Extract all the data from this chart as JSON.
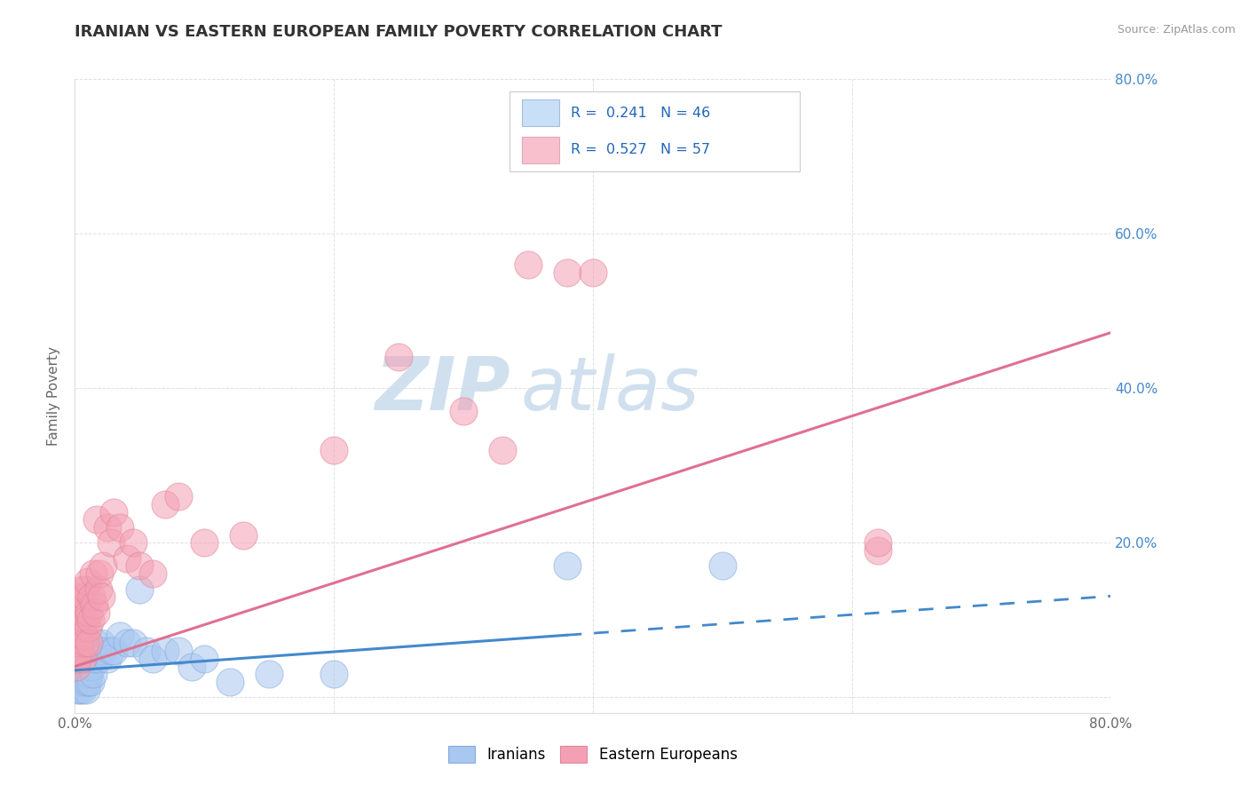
{
  "title": "IRANIAN VS EASTERN EUROPEAN FAMILY POVERTY CORRELATION CHART",
  "source": "Source: ZipAtlas.com",
  "ylabel": "Family Poverty",
  "x_min": 0.0,
  "x_max": 0.8,
  "y_min": -0.02,
  "y_max": 0.8,
  "x_ticks": [
    0.0,
    0.2,
    0.4,
    0.6,
    0.8
  ],
  "y_ticks": [
    0.0,
    0.2,
    0.4,
    0.6,
    0.8
  ],
  "x_tick_labels": [
    "0.0%",
    "",
    "",
    "",
    "80.0%"
  ],
  "y_tick_labels_right": [
    "",
    "20.0%",
    "40.0%",
    "60.0%",
    "80.0%"
  ],
  "iranians_color": "#a8c8f0",
  "eastern_color": "#f4a0b4",
  "iranians_line_color": "#4488cc",
  "eastern_line_color": "#e07090",
  "iranians_R": 0.241,
  "iranians_N": 46,
  "eastern_R": 0.527,
  "eastern_N": 57,
  "background_color": "#ffffff",
  "grid_color": "#cccccc",
  "legend_box_color_iranian": "#c8dff8",
  "legend_box_color_eastern": "#f8c0cc",
  "watermark": "ZIPatlas",
  "watermark_color": "#ccdded",
  "iranians_scatter": [
    [
      0.001,
      0.02
    ],
    [
      0.002,
      0.01
    ],
    [
      0.002,
      0.03
    ],
    [
      0.003,
      0.02
    ],
    [
      0.003,
      0.04
    ],
    [
      0.004,
      0.01
    ],
    [
      0.004,
      0.03
    ],
    [
      0.005,
      0.02
    ],
    [
      0.005,
      0.05
    ],
    [
      0.006,
      0.03
    ],
    [
      0.006,
      0.01
    ],
    [
      0.007,
      0.04
    ],
    [
      0.007,
      0.02
    ],
    [
      0.008,
      0.03
    ],
    [
      0.008,
      0.05
    ],
    [
      0.009,
      0.02
    ],
    [
      0.009,
      0.01
    ],
    [
      0.01,
      0.04
    ],
    [
      0.01,
      0.02
    ],
    [
      0.011,
      0.03
    ],
    [
      0.012,
      0.02
    ],
    [
      0.013,
      0.04
    ],
    [
      0.014,
      0.03
    ],
    [
      0.015,
      0.05
    ],
    [
      0.016,
      0.07
    ],
    [
      0.018,
      0.05
    ],
    [
      0.02,
      0.07
    ],
    [
      0.022,
      0.06
    ],
    [
      0.025,
      0.05
    ],
    [
      0.028,
      0.06
    ],
    [
      0.03,
      0.06
    ],
    [
      0.035,
      0.08
    ],
    [
      0.04,
      0.07
    ],
    [
      0.045,
      0.07
    ],
    [
      0.05,
      0.14
    ],
    [
      0.055,
      0.06
    ],
    [
      0.06,
      0.05
    ],
    [
      0.07,
      0.06
    ],
    [
      0.08,
      0.06
    ],
    [
      0.09,
      0.04
    ],
    [
      0.1,
      0.05
    ],
    [
      0.12,
      0.02
    ],
    [
      0.15,
      0.03
    ],
    [
      0.2,
      0.03
    ],
    [
      0.38,
      0.17
    ],
    [
      0.5,
      0.17
    ]
  ],
  "eastern_scatter": [
    [
      0.001,
      0.04
    ],
    [
      0.001,
      0.07
    ],
    [
      0.002,
      0.05
    ],
    [
      0.002,
      0.08
    ],
    [
      0.002,
      0.1
    ],
    [
      0.003,
      0.06
    ],
    [
      0.003,
      0.09
    ],
    [
      0.003,
      0.12
    ],
    [
      0.004,
      0.07
    ],
    [
      0.004,
      0.13
    ],
    [
      0.004,
      0.1
    ],
    [
      0.005,
      0.08
    ],
    [
      0.005,
      0.11
    ],
    [
      0.006,
      0.05
    ],
    [
      0.006,
      0.09
    ],
    [
      0.006,
      0.14
    ],
    [
      0.007,
      0.08
    ],
    [
      0.007,
      0.12
    ],
    [
      0.008,
      0.07
    ],
    [
      0.008,
      0.13
    ],
    [
      0.009,
      0.1
    ],
    [
      0.009,
      0.14
    ],
    [
      0.01,
      0.09
    ],
    [
      0.01,
      0.15
    ],
    [
      0.011,
      0.11
    ],
    [
      0.011,
      0.07
    ],
    [
      0.012,
      0.1
    ],
    [
      0.013,
      0.13
    ],
    [
      0.014,
      0.16
    ],
    [
      0.015,
      0.12
    ],
    [
      0.016,
      0.11
    ],
    [
      0.017,
      0.23
    ],
    [
      0.018,
      0.14
    ],
    [
      0.019,
      0.16
    ],
    [
      0.02,
      0.13
    ],
    [
      0.022,
      0.17
    ],
    [
      0.025,
      0.22
    ],
    [
      0.028,
      0.2
    ],
    [
      0.03,
      0.24
    ],
    [
      0.035,
      0.22
    ],
    [
      0.04,
      0.18
    ],
    [
      0.045,
      0.2
    ],
    [
      0.05,
      0.17
    ],
    [
      0.06,
      0.16
    ],
    [
      0.07,
      0.25
    ],
    [
      0.08,
      0.26
    ],
    [
      0.1,
      0.2
    ],
    [
      0.13,
      0.21
    ],
    [
      0.2,
      0.32
    ],
    [
      0.25,
      0.44
    ],
    [
      0.3,
      0.37
    ],
    [
      0.33,
      0.32
    ],
    [
      0.35,
      0.56
    ],
    [
      0.38,
      0.55
    ],
    [
      0.4,
      0.55
    ],
    [
      0.62,
      0.19
    ],
    [
      0.62,
      0.2
    ]
  ]
}
